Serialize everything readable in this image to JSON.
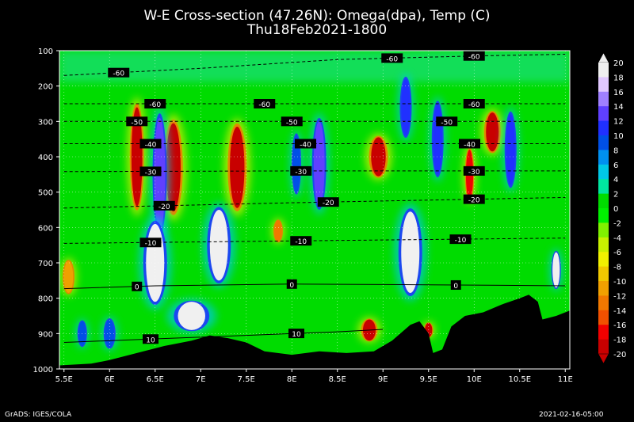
{
  "chart_data": {
    "type": "heatmap",
    "title": "W-E Cross-section (47.26N): Omega(dpa), Temp (C)",
    "subtitle": "Thu18Feb2021-1800",
    "x_ticks": [
      "5.5E",
      "6E",
      "6.5E",
      "7E",
      "7.5E",
      "8E",
      "8.5E",
      "9E",
      "9.5E",
      "10E",
      "10.5E",
      "11E"
    ],
    "x_values": [
      5.5,
      6,
      6.5,
      7,
      7.5,
      8,
      8.5,
      9,
      9.5,
      10,
      10.5,
      11
    ],
    "y_ticks": [
      "100",
      "200",
      "300",
      "400",
      "500",
      "600",
      "700",
      "800",
      "900",
      "1000"
    ],
    "y_values": [
      100,
      200,
      300,
      400,
      500,
      600,
      700,
      800,
      900,
      1000
    ],
    "xlim": [
      5.45,
      11.05
    ],
    "ylim": [
      1000,
      100
    ],
    "grid": true,
    "colorbar": {
      "labels": [
        "20",
        "18",
        "16",
        "14",
        "12",
        "10",
        "8",
        "6",
        "4",
        "2",
        "0",
        "-2",
        "-4",
        "-6",
        "-8",
        "-10",
        "-12",
        "-14",
        "-16",
        "-18",
        "-20"
      ],
      "values": [
        20,
        18,
        16,
        14,
        12,
        10,
        8,
        6,
        4,
        2,
        0,
        -2,
        -4,
        -6,
        -8,
        -10,
        -12,
        -14,
        -16,
        -18,
        -20
      ],
      "colors": [
        "#f0f0f0",
        "#e1c8ff",
        "#a080ff",
        "#6040ff",
        "#2030ff",
        "#0050e6",
        "#0090f0",
        "#00c8e6",
        "#00e6a0",
        "#00dc00",
        "#00f000",
        "#80f000",
        "#c8f000",
        "#f0f000",
        "#f0c800",
        "#f0a000",
        "#f07800",
        "#f05000",
        "#f00000",
        "#c80000"
      ]
    },
    "temperature_isotherms": [
      {
        "label": "-60",
        "label_x": [
          6.1,
          9.1,
          10.0
        ],
        "points": [
          [
            5.5,
            170
          ],
          [
            7,
            150
          ],
          [
            8.5,
            125
          ],
          [
            10,
            115
          ],
          [
            11,
            110
          ]
        ]
      },
      {
        "label": "-60",
        "label_x": [
          6.5,
          7.7,
          10.0
        ],
        "points": [
          [
            5.5,
            250
          ],
          [
            8,
            250
          ],
          [
            11,
            250
          ]
        ]
      },
      {
        "label": "-50",
        "label_x": [
          6.3,
          8.0,
          9.7
        ],
        "points": [
          [
            5.5,
            300
          ],
          [
            8,
            300
          ],
          [
            11,
            300
          ]
        ]
      },
      {
        "label": "-40",
        "label_x": [
          6.45,
          8.15,
          9.95
        ],
        "points": [
          [
            5.5,
            363
          ],
          [
            8,
            363
          ],
          [
            11,
            363
          ]
        ]
      },
      {
        "label": "-30",
        "label_x": [
          6.45,
          8.1,
          10.0
        ],
        "points": [
          [
            5.5,
            442
          ],
          [
            8,
            440
          ],
          [
            11,
            440
          ]
        ]
      },
      {
        "label": "-20",
        "label_x": [
          6.6,
          8.4,
          10.0
        ],
        "points": [
          [
            5.5,
            545
          ],
          [
            8,
            530
          ],
          [
            11,
            515
          ]
        ]
      },
      {
        "label": "-10",
        "label_x": [
          6.45,
          8.1,
          9.85
        ],
        "points": [
          [
            5.5,
            645
          ],
          [
            8,
            638
          ],
          [
            11,
            630
          ]
        ]
      },
      {
        "label": "0",
        "label_x": [
          6.3,
          8.0,
          9.8
        ],
        "points": [
          [
            5.5,
            773
          ],
          [
            6.5,
            765
          ],
          [
            8,
            760
          ],
          [
            9.5,
            762
          ],
          [
            11,
            765
          ]
        ]
      },
      {
        "label": "10",
        "label_x": [
          6.45,
          8.05
        ],
        "points": [
          [
            5.5,
            925
          ],
          [
            6.5,
            915
          ],
          [
            7.5,
            905
          ],
          [
            8.5,
            895
          ],
          [
            9,
            888
          ]
        ]
      }
    ],
    "terrain_surface_pressure": [
      [
        5.45,
        990
      ],
      [
        5.8,
        985
      ],
      [
        6,
        975
      ],
      [
        6.3,
        955
      ],
      [
        6.6,
        935
      ],
      [
        6.9,
        920
      ],
      [
        7.1,
        905
      ],
      [
        7.3,
        913
      ],
      [
        7.5,
        925
      ],
      [
        7.7,
        950
      ],
      [
        8,
        960
      ],
      [
        8.3,
        950
      ],
      [
        8.6,
        955
      ],
      [
        8.9,
        950
      ],
      [
        9.1,
        920
      ],
      [
        9.3,
        875
      ],
      [
        9.4,
        865
      ],
      [
        9.5,
        900
      ],
      [
        9.55,
        955
      ],
      [
        9.65,
        945
      ],
      [
        9.75,
        880
      ],
      [
        9.9,
        850
      ],
      [
        10.1,
        840
      ],
      [
        10.3,
        818
      ],
      [
        10.5,
        800
      ],
      [
        10.6,
        790
      ],
      [
        10.7,
        810
      ],
      [
        10.75,
        860
      ],
      [
        10.9,
        850
      ],
      [
        11.05,
        835
      ]
    ],
    "omega_cells": [
      {
        "x": 6.3,
        "p": 400,
        "dx": 0.06,
        "dp": 280,
        "v": -20
      },
      {
        "x": 6.7,
        "p": 430,
        "dx": 0.08,
        "dp": 250,
        "v": -20
      },
      {
        "x": 7.4,
        "p": 430,
        "dx": 0.08,
        "dp": 230,
        "v": -20
      },
      {
        "x": 8.95,
        "p": 400,
        "dx": 0.08,
        "dp": 110,
        "v": -20
      },
      {
        "x": 10.2,
        "p": 330,
        "dx": 0.07,
        "dp": 110,
        "v": -20
      },
      {
        "x": 9.95,
        "p": 450,
        "dx": 0.04,
        "dp": 140,
        "v": -16
      },
      {
        "x": 7.85,
        "p": 610,
        "dx": 0.04,
        "dp": 60,
        "v": -12
      },
      {
        "x": 8.85,
        "p": 890,
        "dx": 0.07,
        "dp": 60,
        "v": -20
      },
      {
        "x": 9.5,
        "p": 890,
        "dx": 0.04,
        "dp": 40,
        "v": -20
      },
      {
        "x": 6.55,
        "p": 450,
        "dx": 0.06,
        "dp": 320,
        "v": 14
      },
      {
        "x": 6.5,
        "p": 700,
        "dx": 0.1,
        "dp": 220,
        "v": 20
      },
      {
        "x": 6.9,
        "p": 850,
        "dx": 0.15,
        "dp": 80,
        "v": 20
      },
      {
        "x": 7.2,
        "p": 650,
        "dx": 0.1,
        "dp": 200,
        "v": 20
      },
      {
        "x": 8.3,
        "p": 420,
        "dx": 0.06,
        "dp": 240,
        "v": 14
      },
      {
        "x": 8.05,
        "p": 420,
        "dx": 0.04,
        "dp": 160,
        "v": 10
      },
      {
        "x": 9.25,
        "p": 260,
        "dx": 0.05,
        "dp": 160,
        "v": 12
      },
      {
        "x": 9.3,
        "p": 670,
        "dx": 0.1,
        "dp": 230,
        "v": 20
      },
      {
        "x": 9.6,
        "p": 350,
        "dx": 0.05,
        "dp": 200,
        "v": 12
      },
      {
        "x": 10.4,
        "p": 380,
        "dx": 0.05,
        "dp": 200,
        "v": 12
      },
      {
        "x": 10.9,
        "p": 720,
        "dx": 0.04,
        "dp": 100,
        "v": 20
      },
      {
        "x": 6.0,
        "p": 900,
        "dx": 0.05,
        "dp": 80,
        "v": 10
      },
      {
        "x": 5.7,
        "p": 900,
        "dx": 0.04,
        "dp": 70,
        "v": 10
      },
      {
        "x": 5.55,
        "p": 740,
        "dx": 0.05,
        "dp": 90,
        "v": -10
      }
    ]
  },
  "footer": {
    "left": "GrADS: IGES/COLA",
    "right": "2021-02-16-05:00"
  }
}
